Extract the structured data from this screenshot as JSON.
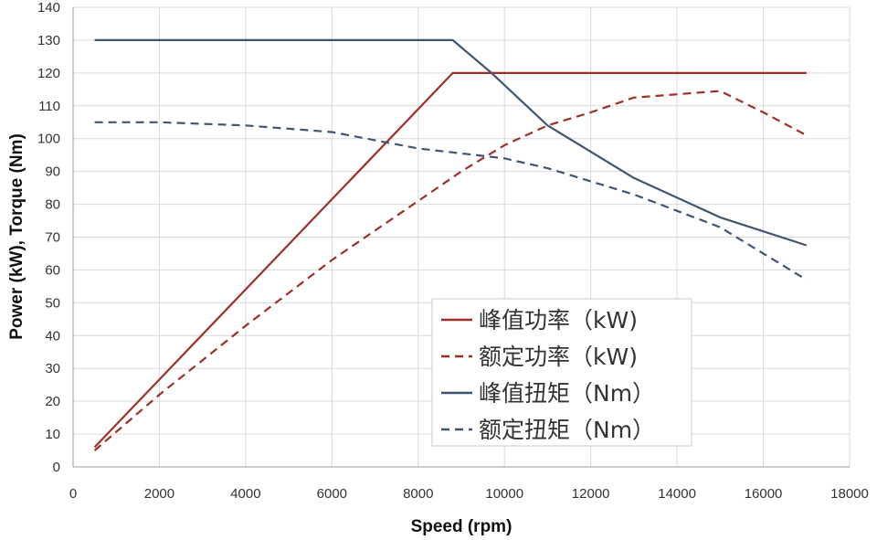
{
  "chart_data": {
    "type": "line",
    "xlabel": "Speed (rpm)",
    "ylabel": "Power (kW), Torque (Nm)",
    "xlim": [
      0,
      18000
    ],
    "ylim": [
      0,
      140
    ],
    "x_ticks": [
      "0",
      "2000",
      "4000",
      "6000",
      "8000",
      "10000",
      "12000",
      "14000",
      "16000",
      "18000"
    ],
    "y_ticks": [
      "0",
      "10",
      "20",
      "30",
      "40",
      "50",
      "60",
      "70",
      "80",
      "90",
      "100",
      "110",
      "120",
      "130",
      "140"
    ],
    "grid": true,
    "legend_position": "bottom-center",
    "series": [
      {
        "name": "峰值功率（kW)",
        "color": "#9e2f28",
        "dash": "solid",
        "points": [
          [
            500,
            6
          ],
          [
            8800,
            120
          ],
          [
            17000,
            120
          ]
        ]
      },
      {
        "name": "额定功率（kW)",
        "color": "#9e2f28",
        "dash": "dashed",
        "points": [
          [
            500,
            5
          ],
          [
            2000,
            22
          ],
          [
            4000,
            43
          ],
          [
            6000,
            63
          ],
          [
            8000,
            81
          ],
          [
            9000,
            90
          ],
          [
            10000,
            98
          ],
          [
            11000,
            104
          ],
          [
            12000,
            108
          ],
          [
            13000,
            112.5
          ],
          [
            15000,
            114.5
          ],
          [
            16000,
            108
          ],
          [
            17000,
            101
          ]
        ]
      },
      {
        "name": "峰值扭矩（Nm）",
        "color": "#3f5570",
        "dash": "solid",
        "points": [
          [
            500,
            130
          ],
          [
            8500,
            130
          ],
          [
            8800,
            130
          ],
          [
            9700,
            120
          ],
          [
            11000,
            104
          ],
          [
            13000,
            88
          ],
          [
            15000,
            76
          ],
          [
            17000,
            67.5
          ]
        ]
      },
      {
        "name": "额定扭矩（Nm）",
        "color": "#3f5570",
        "dash": "dashed",
        "points": [
          [
            500,
            105
          ],
          [
            2000,
            105
          ],
          [
            4000,
            104
          ],
          [
            6000,
            102
          ],
          [
            8000,
            97
          ],
          [
            10000,
            94
          ],
          [
            11000,
            91
          ],
          [
            13000,
            83
          ],
          [
            15000,
            73
          ],
          [
            16000,
            65
          ],
          [
            17000,
            57
          ]
        ]
      }
    ]
  }
}
